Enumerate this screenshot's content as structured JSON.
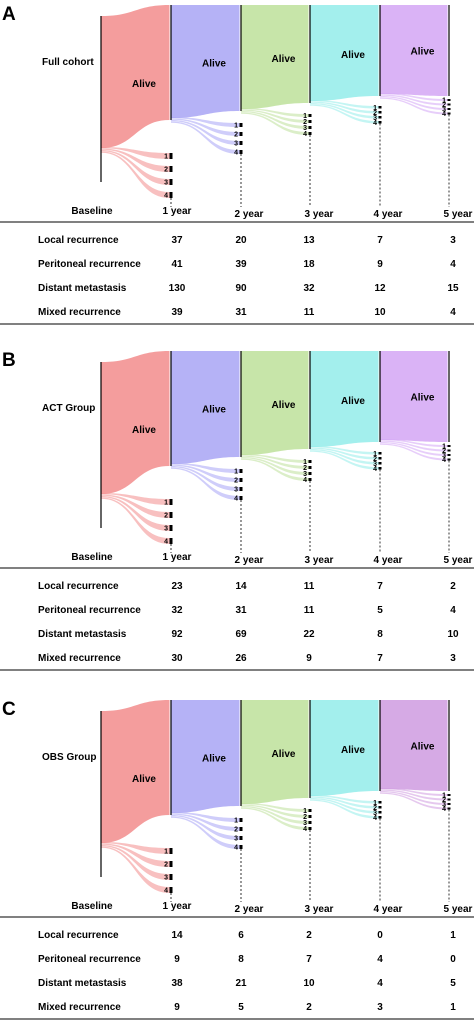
{
  "chart_data": [
    {
      "type": "sankey",
      "panel_letter": "A",
      "cohort_label": "Full cohort",
      "node_label": "Alive",
      "stages": [
        "Baseline",
        "1 year",
        "2 year",
        "3 year",
        "4 year",
        "5 year"
      ],
      "recurrence_codes": [
        "1",
        "2",
        "3",
        "4"
      ],
      "colors": [
        "#f28c8c",
        "#a8a4f5",
        "#bde09a",
        "#93ecea",
        "#d4a6f5"
      ],
      "table": {
        "rows": [
          {
            "label": "Local recurrence",
            "values": [
              37,
              20,
              13,
              7,
              3
            ]
          },
          {
            "label": "Peritoneal recurrence",
            "values": [
              41,
              39,
              18,
              9,
              4
            ]
          },
          {
            "label": "Distant metastasis",
            "values": [
              130,
              90,
              32,
              12,
              15
            ]
          },
          {
            "label": "Mixed recurrence",
            "values": [
              39,
              31,
              11,
              10,
              4
            ]
          }
        ]
      }
    },
    {
      "type": "sankey",
      "panel_letter": "B",
      "cohort_label": "ACT Group",
      "node_label": "Alive",
      "stages": [
        "Baseline",
        "1 year",
        "2 year",
        "3 year",
        "4 year",
        "5 year"
      ],
      "recurrence_codes": [
        "1",
        "2",
        "3",
        "4"
      ],
      "colors": [
        "#f28c8c",
        "#a8a4f5",
        "#bde09a",
        "#93ecea",
        "#d4a6f5"
      ],
      "table": {
        "rows": [
          {
            "label": "Local recurrence",
            "values": [
              23,
              14,
              11,
              7,
              2
            ]
          },
          {
            "label": "Peritoneal recurrence",
            "values": [
              32,
              31,
              11,
              5,
              4
            ]
          },
          {
            "label": "Distant metastasis",
            "values": [
              92,
              69,
              22,
              8,
              10
            ]
          },
          {
            "label": "Mixed recurrence",
            "values": [
              30,
              26,
              9,
              7,
              3
            ]
          }
        ]
      }
    },
    {
      "type": "sankey",
      "panel_letter": "C",
      "cohort_label": "OBS Group",
      "node_label": "Alive",
      "stages": [
        "Baseline",
        "1 year",
        "2 year",
        "3 year",
        "4 year",
        "5 year"
      ],
      "recurrence_codes": [
        "1",
        "2",
        "3",
        "4"
      ],
      "colors": [
        "#f28c8c",
        "#a8a4f5",
        "#bde09a",
        "#93ecea",
        "#cf9be0"
      ],
      "table": {
        "rows": [
          {
            "label": "Local recurrence",
            "values": [
              14,
              6,
              2,
              0,
              1
            ]
          },
          {
            "label": "Peritoneal recurrence",
            "values": [
              9,
              8,
              7,
              4,
              0
            ]
          },
          {
            "label": "Distant metastasis",
            "values": [
              38,
              21,
              10,
              4,
              5
            ]
          },
          {
            "label": "Mixed recurrence",
            "values": [
              9,
              5,
              2,
              3,
              1
            ]
          }
        ]
      }
    }
  ]
}
